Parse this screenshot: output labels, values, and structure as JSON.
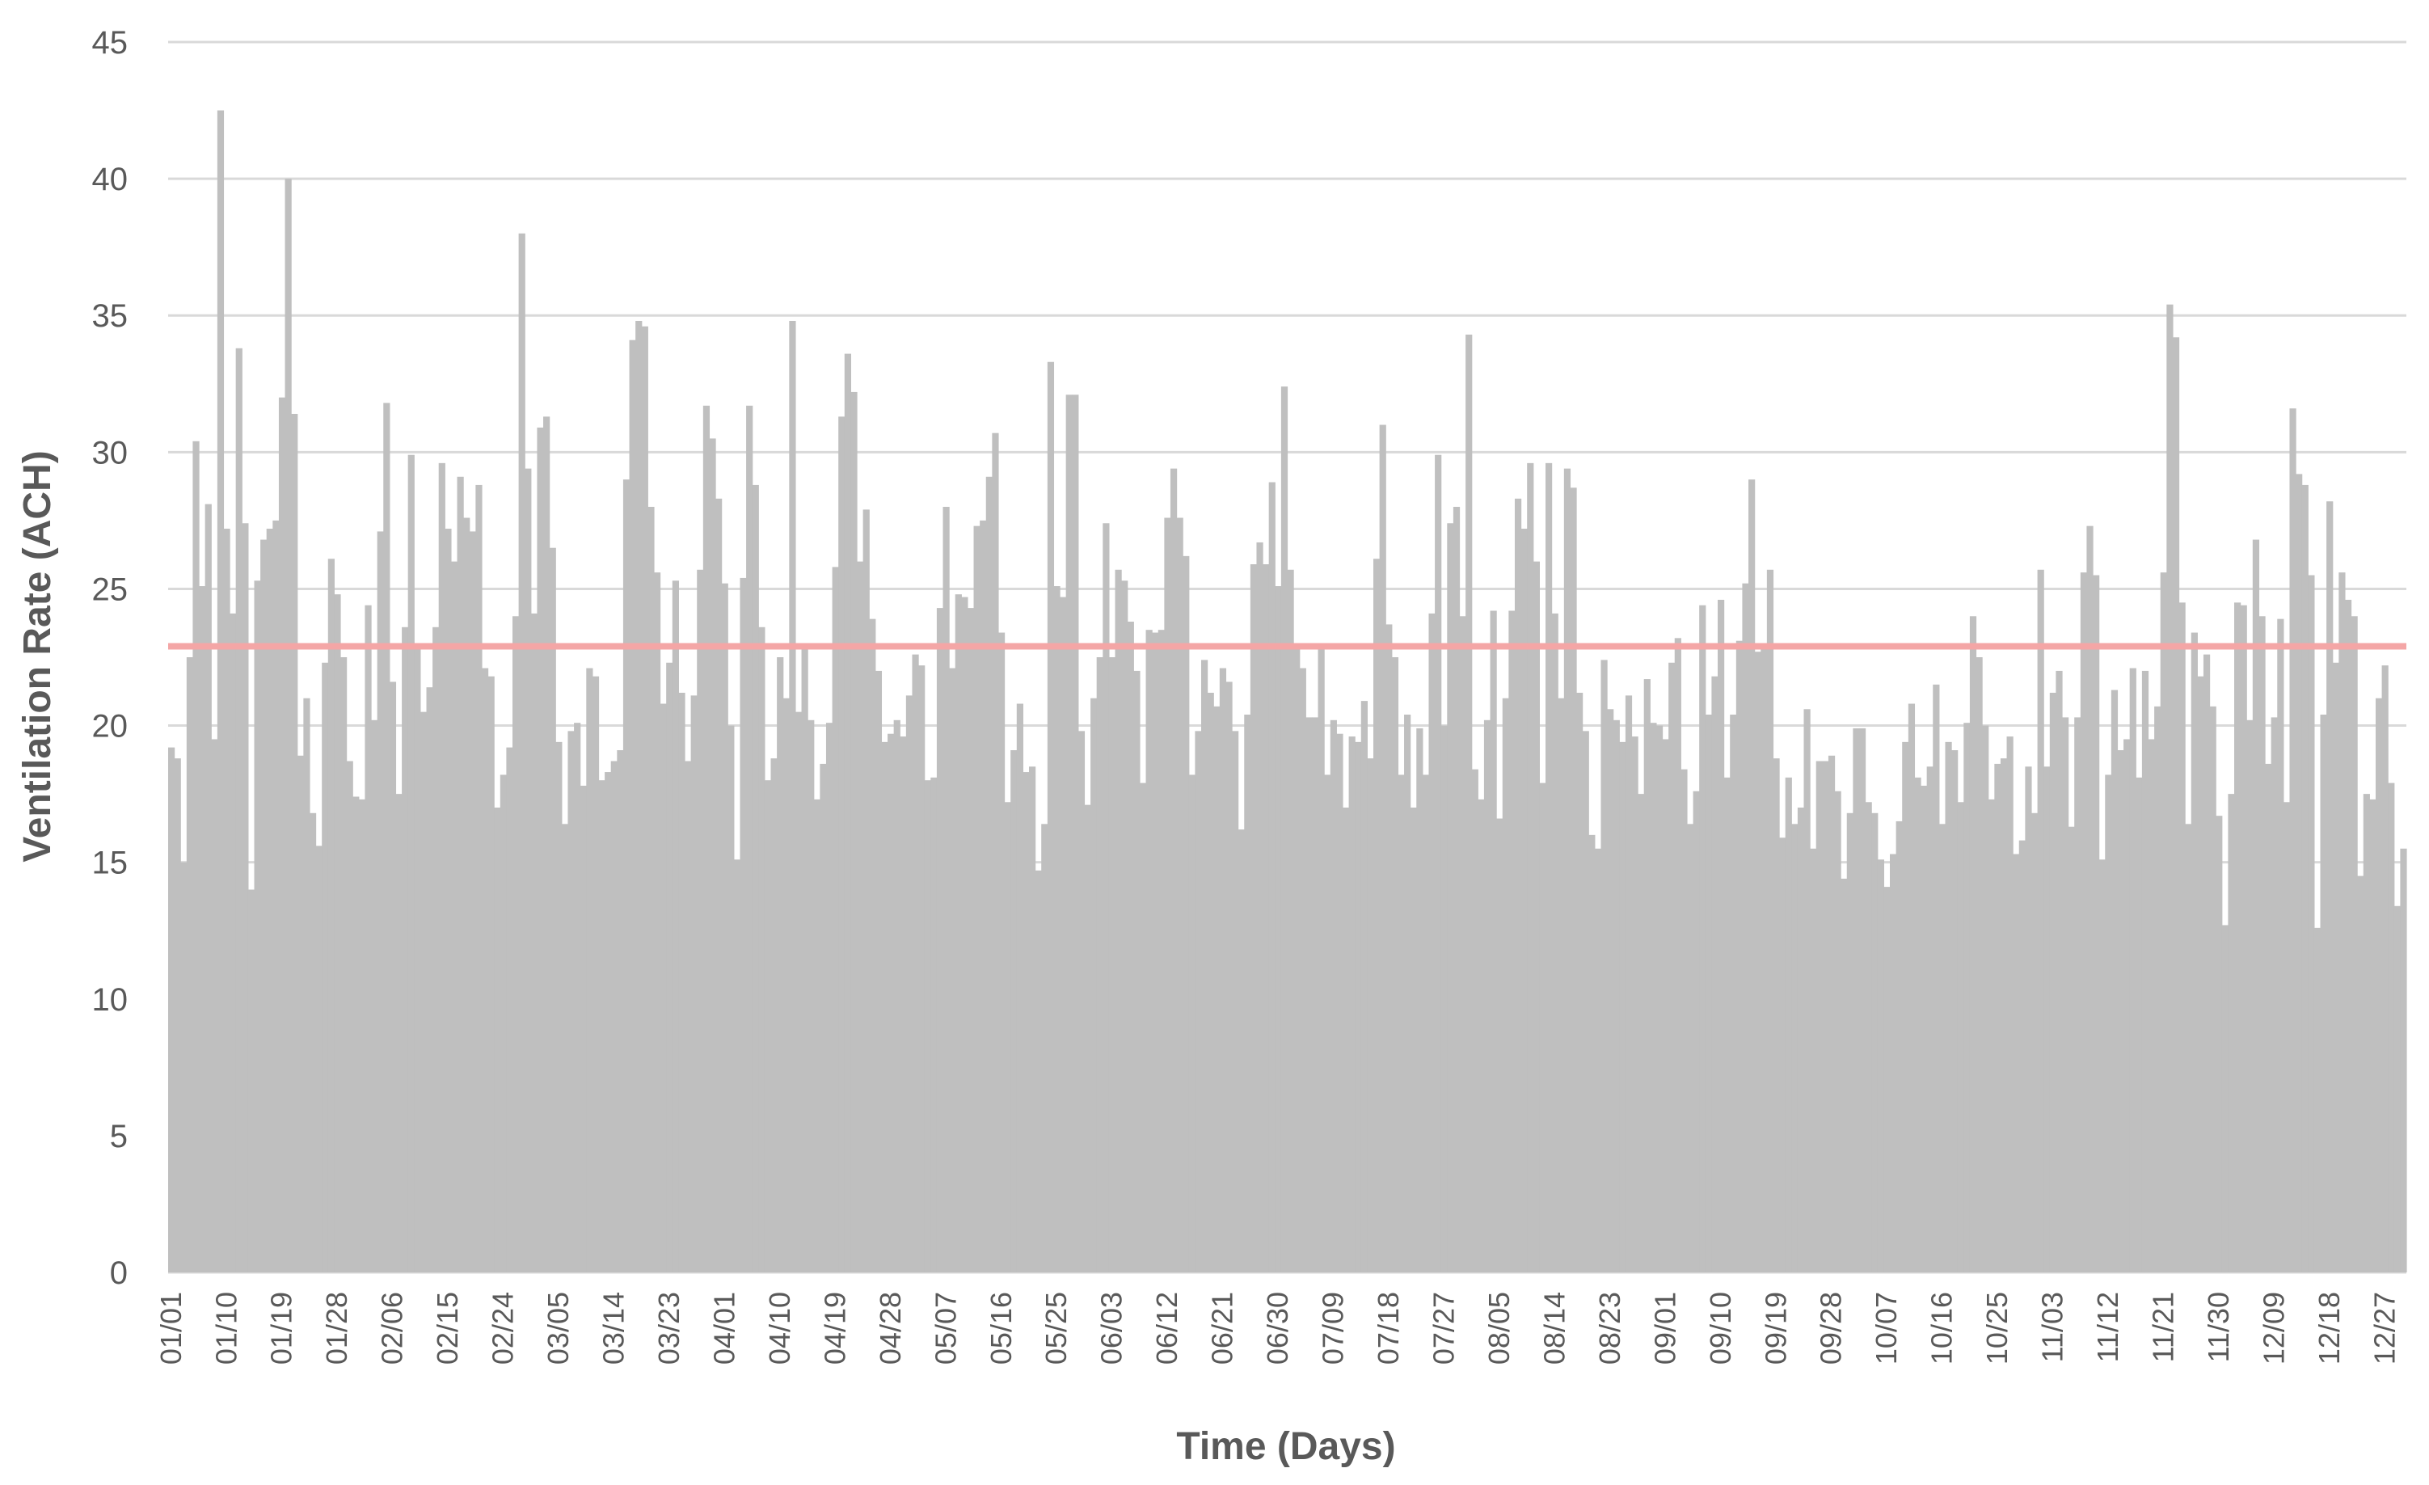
{
  "chart_data": {
    "type": "bar",
    "xlabel": "Time (Days)",
    "ylabel": "Ventilation Rate (ACH)",
    "ylim": [
      0,
      45
    ],
    "yticks": [
      0,
      5,
      10,
      15,
      20,
      25,
      30,
      35,
      40,
      45
    ],
    "grid": true,
    "x_start": "01/01",
    "x_step_days": 1,
    "xtick_labels": [
      "01/01",
      "01/10",
      "01/19",
      "01/28",
      "02/06",
      "02/15",
      "02/24",
      "03/05",
      "03/14",
      "03/23",
      "04/01",
      "04/10",
      "04/19",
      "04/28",
      "05/07",
      "05/16",
      "05/25",
      "06/03",
      "06/12",
      "06/21",
      "06/30",
      "07/09",
      "07/18",
      "07/27",
      "08/05",
      "08/14",
      "08/23",
      "09/01",
      "09/10",
      "09/19",
      "09/28",
      "10/07",
      "10/16",
      "10/25",
      "11/03",
      "11/12",
      "11/21",
      "11/30",
      "12/09",
      "12/18",
      "12/27"
    ],
    "reference_line": {
      "value": 22.9,
      "color": "#f4a6a6"
    },
    "bar_color": "#bfbfbf",
    "values": [
      19.2,
      18.8,
      15.0,
      22.5,
      30.4,
      25.1,
      28.1,
      19.5,
      42.5,
      27.2,
      24.1,
      33.8,
      27.4,
      14.0,
      25.3,
      26.8,
      27.2,
      27.5,
      32.0,
      40.0,
      31.4,
      18.9,
      21.0,
      16.8,
      15.6,
      22.3,
      26.1,
      24.8,
      22.5,
      18.7,
      17.4,
      17.3,
      24.4,
      20.2,
      27.1,
      31.8,
      21.6,
      17.5,
      23.6,
      29.9,
      22.8,
      20.5,
      21.4,
      23.6,
      29.6,
      27.2,
      26.0,
      29.1,
      27.6,
      27.1,
      28.8,
      22.1,
      21.8,
      17.0,
      18.2,
      19.2,
      24.0,
      38.0,
      29.4,
      24.1,
      30.9,
      31.3,
      26.5,
      19.4,
      16.4,
      19.8,
      20.1,
      17.8,
      22.1,
      21.8,
      18.0,
      18.3,
      18.7,
      19.1,
      29.0,
      34.1,
      34.8,
      34.6,
      28.0,
      25.6,
      20.8,
      22.3,
      25.3,
      21.2,
      18.7,
      21.1,
      25.7,
      31.7,
      30.5,
      28.3,
      25.2,
      20.0,
      15.1,
      25.4,
      31.7,
      28.8,
      23.6,
      18.0,
      18.8,
      22.5,
      21.0,
      34.8,
      20.5,
      23.0,
      20.2,
      17.3,
      18.6,
      20.1,
      25.8,
      31.3,
      33.6,
      32.2,
      26.0,
      27.9,
      23.9,
      22.0,
      19.4,
      19.7,
      20.2,
      19.6,
      21.1,
      22.6,
      22.2,
      18.0,
      18.1,
      24.3,
      28.0,
      22.1,
      24.8,
      24.7,
      24.3,
      27.3,
      27.5,
      29.1,
      30.7,
      23.4,
      17.2,
      19.1,
      20.8,
      18.3,
      18.5,
      14.7,
      16.4,
      33.3,
      25.1,
      24.7,
      32.1,
      32.1,
      19.8,
      17.1,
      21.0,
      22.5,
      27.4,
      22.5,
      25.7,
      25.3,
      23.8,
      22.0,
      17.9,
      23.5,
      23.4,
      23.5,
      27.6,
      29.4,
      27.6,
      26.2,
      18.2,
      19.8,
      22.4,
      21.2,
      20.7,
      22.1,
      21.6,
      19.8,
      16.2,
      20.4,
      25.9,
      26.7,
      25.9,
      28.9,
      25.1,
      32.4,
      25.7,
      23.0,
      22.1,
      20.3,
      20.3,
      22.8,
      18.2,
      20.2,
      19.7,
      17.0,
      19.6,
      19.4,
      20.9,
      18.8,
      26.1,
      31.0,
      23.7,
      22.5,
      18.2,
      20.4,
      17.0,
      19.9,
      18.2,
      24.1,
      29.9,
      20.0,
      27.4,
      28.0,
      24.0,
      34.3,
      18.4,
      17.3,
      20.2,
      24.2,
      16.6,
      21.0,
      24.2,
      28.3,
      27.2,
      29.6,
      26.0,
      17.9,
      29.6,
      24.1,
      21.0,
      29.4,
      28.7,
      21.2,
      19.8,
      16.0,
      15.5,
      22.4,
      20.6,
      20.2,
      19.4,
      21.1,
      19.6,
      17.5,
      21.7,
      20.1,
      20.0,
      19.5,
      22.3,
      23.2,
      18.4,
      16.4,
      17.6,
      24.4,
      20.4,
      21.8,
      24.6,
      18.1,
      20.4,
      23.1,
      25.2,
      29.0,
      22.7,
      22.8,
      25.7,
      18.8,
      15.9,
      18.1,
      16.4,
      17.0,
      20.6,
      15.5,
      18.7,
      18.7,
      18.9,
      17.6,
      14.4,
      16.8,
      19.9,
      19.9,
      17.2,
      16.8,
      15.1,
      14.1,
      15.3,
      16.5,
      19.4,
      20.8,
      18.1,
      17.8,
      18.5,
      21.5,
      16.4,
      19.4,
      19.1,
      17.2,
      20.1,
      24.0,
      22.5,
      20.0,
      17.3,
      18.6,
      18.8,
      19.6,
      15.3,
      15.8,
      18.5,
      16.8,
      25.7,
      18.5,
      21.2,
      22.0,
      20.3,
      16.3,
      20.3,
      25.6,
      27.3,
      25.5,
      15.1,
      18.2,
      21.3,
      19.1,
      19.5,
      22.1,
      18.1,
      22.0,
      19.5,
      20.7,
      25.6,
      35.4,
      34.2,
      24.5,
      16.4,
      23.4,
      21.8,
      22.6,
      20.7,
      16.7,
      12.7,
      17.5,
      24.5,
      24.4,
      20.2,
      26.8,
      24.0,
      18.6,
      20.3,
      23.9,
      17.2,
      31.6,
      29.2,
      28.8,
      25.5,
      12.6,
      20.4,
      28.2,
      22.3,
      25.6,
      24.6,
      24.0,
      14.5,
      17.5,
      17.3,
      21.0,
      22.2,
      17.9,
      13.4,
      15.5
    ]
  }
}
